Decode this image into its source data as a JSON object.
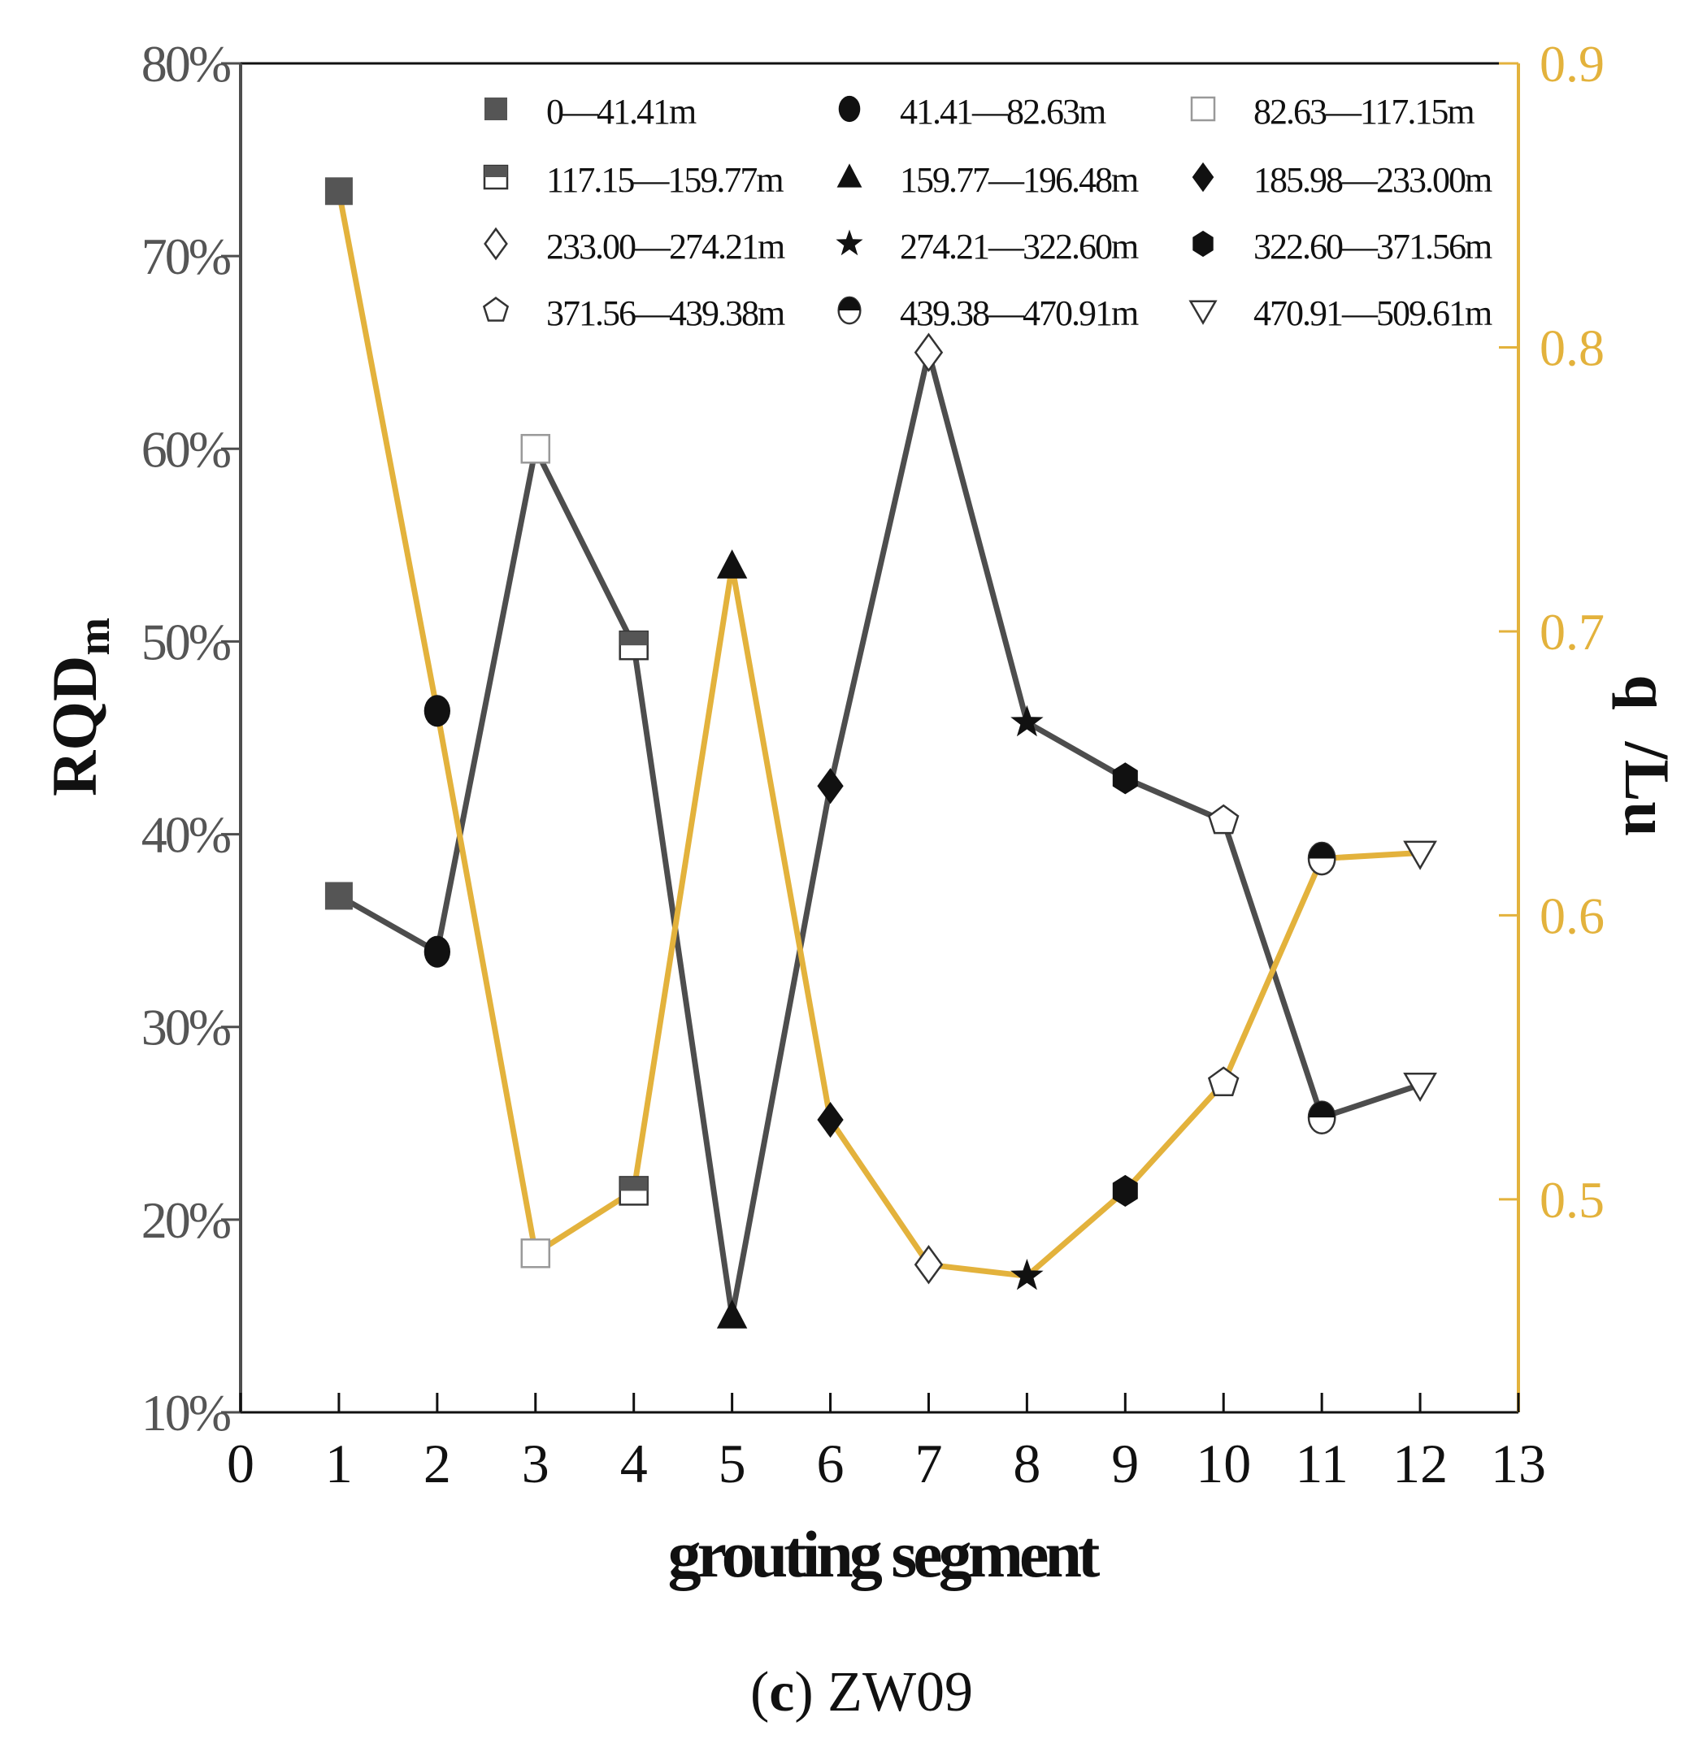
{
  "chart_data": {
    "type": "line",
    "caption": {
      "prefix": "(",
      "letter": "c",
      "suffix": ") ZW09"
    },
    "xlabel": "grouting segment",
    "ylabel_left": {
      "main": "RQD",
      "sub": "m"
    },
    "ylabel_right": "q  /Lu",
    "x_ticks": [
      "0",
      "1",
      "2",
      "3",
      "4",
      "5",
      "6",
      "7",
      "8",
      "9",
      "10",
      "11",
      "12",
      "13"
    ],
    "xlim": [
      0,
      13
    ],
    "y_left_ticks": [
      "10%",
      "20%",
      "30%",
      "40%",
      "50%",
      "60%",
      "70%",
      "80%"
    ],
    "y_left_lim": [
      10,
      80
    ],
    "y_right_ticks": [
      "0.5",
      "0.6",
      "0.7",
      "0.8",
      "0.9"
    ],
    "y_right_lim": [
      0.425,
      0.9
    ],
    "colors": {
      "rqd": "#4D4D4D",
      "q": "#E3B23C",
      "right_axis": "#E3B23C",
      "left_axis": "#4D4D4D"
    },
    "legend": [
      {
        "label": "0—41.41m",
        "marker": "square"
      },
      {
        "label": "41.41—82.63m",
        "marker": "circle"
      },
      {
        "label": "82.63—117.15m",
        "marker": "square-open"
      },
      {
        "label": "117.15—159.77m",
        "marker": "square-half"
      },
      {
        "label": "159.77—196.48m",
        "marker": "triangle"
      },
      {
        "label": "185.98—233.00m",
        "marker": "diamond"
      },
      {
        "label": "233.00—274.21m",
        "marker": "diamond-open"
      },
      {
        "label": "274.21—322.60m",
        "marker": "star"
      },
      {
        "label": "322.60—371.56m",
        "marker": "hexagon"
      },
      {
        "label": "371.56—439.38m",
        "marker": "pentagon-open"
      },
      {
        "label": "439.38—470.91m",
        "marker": "circle-half"
      },
      {
        "label": "470.91—509.61m",
        "marker": "triangle-down-open"
      }
    ],
    "series": [
      {
        "name": "RQDm",
        "axis": "left",
        "x": [
          1,
          2,
          3,
          4,
          5,
          6,
          7,
          8,
          9,
          10,
          11,
          12
        ],
        "values": [
          36.8,
          33.9,
          60.0,
          49.8,
          15.0,
          42.5,
          65.0,
          45.8,
          42.9,
          40.7,
          25.3,
          27.0
        ]
      },
      {
        "name": "q /Lu",
        "axis": "right",
        "x": [
          1,
          2,
          3,
          4,
          5,
          6,
          7,
          8,
          9,
          10,
          11,
          12
        ],
        "values": [
          0.855,
          0.672,
          0.481,
          0.503,
          0.723,
          0.528,
          0.477,
          0.473,
          0.503,
          0.541,
          0.62,
          0.622
        ]
      }
    ]
  }
}
